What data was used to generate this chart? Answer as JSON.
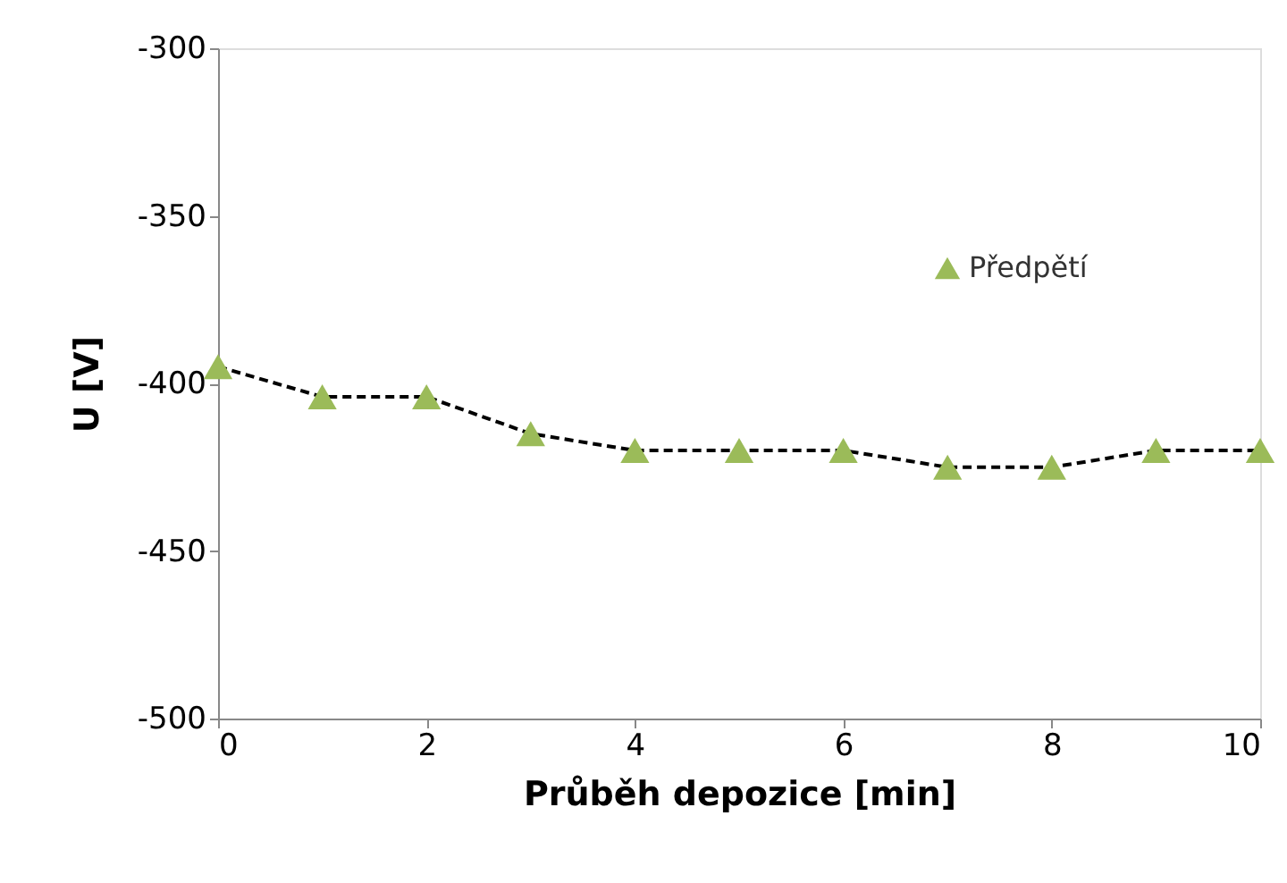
{
  "chart_data": {
    "type": "line",
    "xlabel": "Průběh depozice [min]",
    "ylabel": "U [V]",
    "x": [
      0,
      1,
      2,
      3,
      4,
      5,
      6,
      7,
      8,
      9,
      10
    ],
    "series": [
      {
        "name": "Předpětí",
        "color": "#9bbb59",
        "values": [
          -395,
          -404,
          -404,
          -415,
          -420,
          -420,
          -420,
          -425,
          -425,
          -420,
          -420
        ]
      }
    ],
    "xlim": [
      0,
      10
    ],
    "xticks": [
      0,
      2,
      4,
      6,
      8,
      10
    ],
    "ylim": [
      -500,
      -300
    ],
    "yticks": [
      -500,
      -450,
      -400,
      -350,
      -300
    ],
    "grid": false,
    "legend": "top right",
    "marker": "triangle",
    "line_style": "dashed"
  }
}
